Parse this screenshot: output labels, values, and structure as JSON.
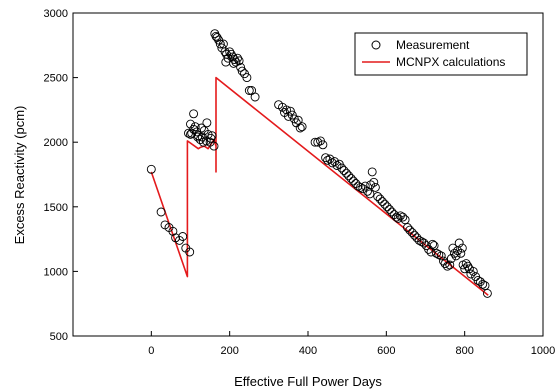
{
  "chart_data": {
    "type": "scatter",
    "xlabel": "Effective Full Power Days",
    "ylabel": "Excess Reactivity (pcm)",
    "xlim": [
      -200,
      1000
    ],
    "ylim": [
      500,
      3000
    ],
    "xticks": [
      0,
      200,
      400,
      600,
      800,
      1000
    ],
    "yticks": [
      500,
      1000,
      1500,
      2000,
      2500,
      3000
    ],
    "grid": false,
    "legend_position": "top-right",
    "series": [
      {
        "name": "Measurement",
        "kind": "scatter",
        "marker": "open-circle",
        "color": "#000000",
        "points": [
          [
            0,
            1790
          ],
          [
            25,
            1460
          ],
          [
            35,
            1360
          ],
          [
            45,
            1340
          ],
          [
            55,
            1310
          ],
          [
            62,
            1260
          ],
          [
            72,
            1240
          ],
          [
            80,
            1270
          ],
          [
            88,
            1180
          ],
          [
            98,
            1150
          ],
          [
            95,
            2070
          ],
          [
            100,
            2140
          ],
          [
            103,
            2070
          ],
          [
            108,
            2100
          ],
          [
            112,
            2120
          ],
          [
            116,
            2080
          ],
          [
            120,
            2050
          ],
          [
            125,
            2020
          ],
          [
            130,
            2040
          ],
          [
            135,
            2090
          ],
          [
            140,
            2010
          ],
          [
            145,
            2060
          ],
          [
            150,
            2000
          ],
          [
            155,
            2050
          ],
          [
            160,
            1970
          ],
          [
            108,
            2220
          ],
          [
            128,
            2110
          ],
          [
            142,
            2150
          ],
          [
            100,
            2060
          ],
          [
            118,
            2040
          ],
          [
            133,
            2000
          ],
          [
            152,
            2030
          ],
          [
            162,
            2840
          ],
          [
            165,
            2820
          ],
          [
            168,
            2810
          ],
          [
            172,
            2790
          ],
          [
            176,
            2760
          ],
          [
            180,
            2730
          ],
          [
            184,
            2760
          ],
          [
            188,
            2700
          ],
          [
            192,
            2680
          ],
          [
            196,
            2650
          ],
          [
            200,
            2700
          ],
          [
            204,
            2680
          ],
          [
            208,
            2660
          ],
          [
            212,
            2640
          ],
          [
            216,
            2620
          ],
          [
            220,
            2650
          ],
          [
            224,
            2630
          ],
          [
            228,
            2580
          ],
          [
            232,
            2550
          ],
          [
            238,
            2530
          ],
          [
            244,
            2500
          ],
          [
            250,
            2400
          ],
          [
            256,
            2400
          ],
          [
            265,
            2350
          ],
          [
            190,
            2620
          ],
          [
            210,
            2610
          ],
          [
            325,
            2290
          ],
          [
            335,
            2270
          ],
          [
            340,
            2230
          ],
          [
            345,
            2250
          ],
          [
            350,
            2200
          ],
          [
            355,
            2240
          ],
          [
            360,
            2210
          ],
          [
            365,
            2180
          ],
          [
            370,
            2150
          ],
          [
            375,
            2170
          ],
          [
            380,
            2110
          ],
          [
            385,
            2120
          ],
          [
            418,
            2000
          ],
          [
            425,
            2000
          ],
          [
            432,
            2010
          ],
          [
            438,
            1980
          ],
          [
            445,
            1880
          ],
          [
            450,
            1860
          ],
          [
            456,
            1870
          ],
          [
            462,
            1840
          ],
          [
            468,
            1850
          ],
          [
            474,
            1820
          ],
          [
            480,
            1830
          ],
          [
            486,
            1800
          ],
          [
            492,
            1780
          ],
          [
            498,
            1760
          ],
          [
            504,
            1740
          ],
          [
            510,
            1720
          ],
          [
            516,
            1700
          ],
          [
            522,
            1680
          ],
          [
            528,
            1660
          ],
          [
            534,
            1650
          ],
          [
            540,
            1640
          ],
          [
            546,
            1660
          ],
          [
            552,
            1620
          ],
          [
            558,
            1600
          ],
          [
            560,
            1670
          ],
          [
            564,
            1770
          ],
          [
            568,
            1690
          ],
          [
            572,
            1650
          ],
          [
            578,
            1580
          ],
          [
            584,
            1560
          ],
          [
            590,
            1540
          ],
          [
            596,
            1520
          ],
          [
            602,
            1500
          ],
          [
            608,
            1480
          ],
          [
            614,
            1460
          ],
          [
            620,
            1440
          ],
          [
            626,
            1420
          ],
          [
            630,
            1410
          ],
          [
            636,
            1430
          ],
          [
            642,
            1420
          ],
          [
            648,
            1400
          ],
          [
            654,
            1340
          ],
          [
            660,
            1320
          ],
          [
            666,
            1300
          ],
          [
            672,
            1280
          ],
          [
            678,
            1260
          ],
          [
            684,
            1240
          ],
          [
            690,
            1230
          ],
          [
            696,
            1220
          ],
          [
            702,
            1200
          ],
          [
            708,
            1170
          ],
          [
            714,
            1150
          ],
          [
            718,
            1210
          ],
          [
            722,
            1200
          ],
          [
            728,
            1140
          ],
          [
            734,
            1130
          ],
          [
            740,
            1120
          ],
          [
            746,
            1080
          ],
          [
            750,
            1060
          ],
          [
            756,
            1040
          ],
          [
            762,
            1050
          ],
          [
            766,
            1100
          ],
          [
            770,
            1180
          ],
          [
            774,
            1140
          ],
          [
            778,
            1120
          ],
          [
            782,
            1160
          ],
          [
            786,
            1220
          ],
          [
            790,
            1140
          ],
          [
            794,
            1180
          ],
          [
            796,
            1050
          ],
          [
            800,
            1020
          ],
          [
            804,
            1060
          ],
          [
            808,
            1040
          ],
          [
            812,
            1020
          ],
          [
            816,
            980
          ],
          [
            822,
            1000
          ],
          [
            828,
            960
          ],
          [
            834,
            930
          ],
          [
            840,
            920
          ],
          [
            846,
            900
          ],
          [
            852,
            890
          ],
          [
            858,
            830
          ]
        ]
      },
      {
        "name": "MCNPX calculations",
        "kind": "line",
        "color": "#e41a1c",
        "points": [
          [
            0,
            1770
          ],
          [
            92,
            960
          ],
          [
            92,
            2010
          ],
          [
            120,
            1950
          ],
          [
            125,
            1960
          ],
          [
            135,
            1970
          ],
          [
            145,
            1950
          ],
          [
            160,
            2020
          ],
          [
            165,
            1970
          ],
          [
            165,
            1770
          ],
          [
            165,
            2500
          ],
          [
            860,
            815
          ]
        ]
      }
    ]
  }
}
